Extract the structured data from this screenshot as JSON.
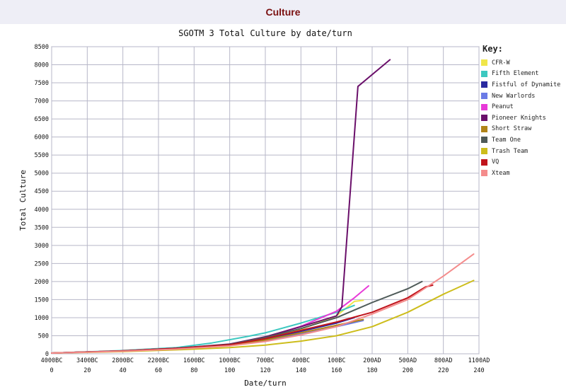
{
  "page": {
    "header_title": "Culture"
  },
  "chart_data": {
    "type": "line",
    "title": "SGOTM 3 Total Culture by date/turn",
    "xlabel": "Date/turn",
    "ylabel": "Total Culture",
    "xlim": [
      0,
      240
    ],
    "ylim": [
      0,
      8500
    ],
    "x_ticks_turn": [
      "0",
      "20",
      "40",
      "60",
      "80",
      "100",
      "120",
      "140",
      "160",
      "180",
      "200",
      "220",
      "240"
    ],
    "x_ticks_date": [
      "4000BC",
      "3400BC",
      "2800BC",
      "2200BC",
      "1600BC",
      "1000BC",
      "700BC",
      "400BC",
      "100BC",
      "200AD",
      "500AD",
      "800AD",
      "1100AD"
    ],
    "y_ticks": [
      "0",
      "500",
      "1000",
      "1500",
      "2000",
      "2500",
      "3000",
      "3500",
      "4000",
      "4500",
      "5000",
      "5500",
      "6000",
      "6500",
      "7000",
      "7500",
      "8000",
      "8500"
    ],
    "grid": true,
    "legend_title": "Key:",
    "legend_position": "right",
    "series": [
      {
        "name": "CFR-W",
        "color": "#f0e64a",
        "points": [
          [
            0,
            20
          ],
          [
            40,
            80
          ],
          [
            70,
            150
          ],
          [
            100,
            260
          ],
          [
            120,
            420
          ],
          [
            140,
            680
          ],
          [
            160,
            1050
          ],
          [
            170,
            1450
          ],
          [
            175,
            1480
          ]
        ]
      },
      {
        "name": "Fifth Element",
        "color": "#3cc8c0",
        "points": [
          [
            0,
            20
          ],
          [
            40,
            90
          ],
          [
            70,
            170
          ],
          [
            90,
            300
          ],
          [
            110,
            480
          ],
          [
            120,
            580
          ],
          [
            140,
            850
          ],
          [
            160,
            1150
          ],
          [
            170,
            1340
          ]
        ]
      },
      {
        "name": "Fistful of Dynamite",
        "color": "#2a2aa0",
        "points": [
          [
            0,
            20
          ],
          [
            40,
            80
          ],
          [
            70,
            150
          ],
          [
            100,
            260
          ],
          [
            120,
            400
          ],
          [
            140,
            620
          ],
          [
            160,
            850
          ],
          [
            170,
            1000
          ]
        ]
      },
      {
        "name": "New Warlords",
        "color": "#6b7be6",
        "points": [
          [
            0,
            20
          ],
          [
            40,
            80
          ],
          [
            70,
            150
          ],
          [
            100,
            240
          ],
          [
            120,
            360
          ],
          [
            140,
            540
          ],
          [
            160,
            750
          ],
          [
            175,
            920
          ]
        ]
      },
      {
        "name": "Peanut",
        "color": "#e83ad8",
        "points": [
          [
            0,
            20
          ],
          [
            40,
            80
          ],
          [
            70,
            150
          ],
          [
            100,
            260
          ],
          [
            120,
            460
          ],
          [
            140,
            760
          ],
          [
            160,
            1180
          ],
          [
            170,
            1550
          ],
          [
            178,
            1880
          ]
        ]
      },
      {
        "name": "Pioneer Knights",
        "color": "#6a0f6a",
        "points": [
          [
            0,
            20
          ],
          [
            40,
            80
          ],
          [
            70,
            150
          ],
          [
            100,
            270
          ],
          [
            120,
            470
          ],
          [
            140,
            750
          ],
          [
            160,
            1050
          ],
          [
            163,
            1300
          ],
          [
            172,
            7400
          ],
          [
            190,
            8140
          ]
        ]
      },
      {
        "name": "Short Straw",
        "color": "#b08418",
        "points": [
          [
            0,
            20
          ],
          [
            40,
            80
          ],
          [
            70,
            140
          ],
          [
            100,
            240
          ],
          [
            120,
            380
          ],
          [
            140,
            580
          ],
          [
            160,
            790
          ],
          [
            175,
            950
          ]
        ]
      },
      {
        "name": "Team One",
        "color": "#4e5a58",
        "points": [
          [
            0,
            20
          ],
          [
            40,
            80
          ],
          [
            70,
            150
          ],
          [
            100,
            260
          ],
          [
            120,
            450
          ],
          [
            140,
            700
          ],
          [
            160,
            1000
          ],
          [
            180,
            1420
          ],
          [
            200,
            1800
          ],
          [
            208,
            2000
          ]
        ]
      },
      {
        "name": "Trash Team",
        "color": "#cdbd1c",
        "points": [
          [
            0,
            20
          ],
          [
            40,
            60
          ],
          [
            70,
            110
          ],
          [
            100,
            170
          ],
          [
            120,
            240
          ],
          [
            140,
            350
          ],
          [
            160,
            500
          ],
          [
            180,
            750
          ],
          [
            200,
            1150
          ],
          [
            220,
            1650
          ],
          [
            237,
            2030
          ]
        ]
      },
      {
        "name": "VQ",
        "color": "#c0141c",
        "points": [
          [
            0,
            20
          ],
          [
            40,
            80
          ],
          [
            70,
            150
          ],
          [
            100,
            250
          ],
          [
            120,
            420
          ],
          [
            140,
            650
          ],
          [
            160,
            880
          ],
          [
            180,
            1150
          ],
          [
            200,
            1550
          ],
          [
            210,
            1850
          ],
          [
            214,
            1900
          ]
        ]
      },
      {
        "name": "Xteam",
        "color": "#f48c8c",
        "points": [
          [
            0,
            20
          ],
          [
            40,
            70
          ],
          [
            70,
            130
          ],
          [
            100,
            220
          ],
          [
            120,
            340
          ],
          [
            140,
            520
          ],
          [
            160,
            750
          ],
          [
            180,
            1100
          ],
          [
            200,
            1500
          ],
          [
            220,
            2150
          ],
          [
            237,
            2760
          ]
        ]
      }
    ]
  }
}
